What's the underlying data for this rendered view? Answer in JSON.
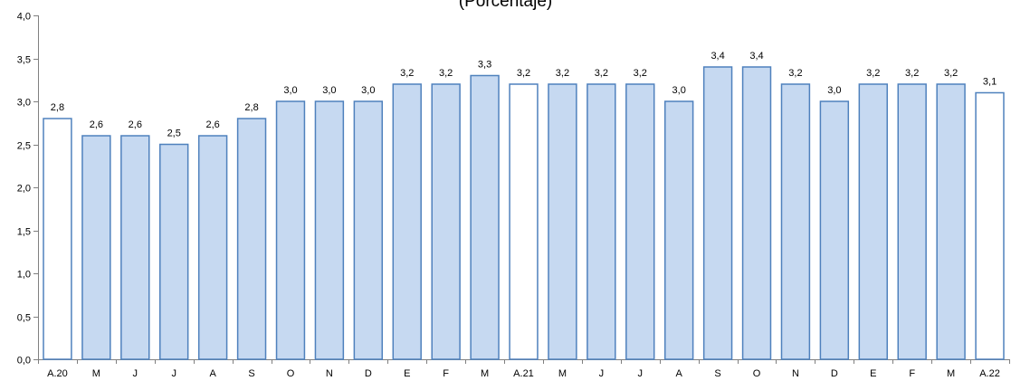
{
  "chart_data": {
    "type": "bar",
    "title": "(Porcentaje)",
    "xlabel": "",
    "ylabel": "",
    "ylim": [
      0,
      4
    ],
    "yticks": [
      "0,0",
      "0,5",
      "1,0",
      "1,5",
      "2,0",
      "2,5",
      "3,0",
      "3,5",
      "4,0"
    ],
    "grid": false,
    "legend": "none",
    "categories": [
      "A.20",
      "M",
      "J",
      "J",
      "A",
      "S",
      "O",
      "N",
      "D",
      "E",
      "F",
      "M",
      "A.21",
      "M",
      "J",
      "J",
      "A",
      "S",
      "O",
      "N",
      "D",
      "E",
      "F",
      "M",
      "A.22"
    ],
    "values": [
      2.8,
      2.6,
      2.6,
      2.5,
      2.6,
      2.8,
      3.0,
      3.0,
      3.0,
      3.2,
      3.2,
      3.3,
      3.2,
      3.2,
      3.2,
      3.2,
      3.0,
      3.4,
      3.4,
      3.2,
      3.0,
      3.2,
      3.2,
      3.2,
      3.1
    ],
    "value_labels": [
      "2,8",
      "2,6",
      "2,6",
      "2,5",
      "2,6",
      "2,8",
      "3,0",
      "3,0",
      "3,0",
      "3,2",
      "3,2",
      "3,3",
      "3,2",
      "3,2",
      "3,2",
      "3,2",
      "3,0",
      "3,4",
      "3,4",
      "3,2",
      "3,0",
      "3,2",
      "3,2",
      "3,2",
      "3,1"
    ],
    "highlighted": [
      true,
      false,
      false,
      false,
      false,
      false,
      false,
      false,
      false,
      false,
      false,
      false,
      true,
      false,
      false,
      false,
      false,
      false,
      false,
      false,
      false,
      false,
      false,
      false,
      true
    ],
    "colors": {
      "bar_fill": "#c6d9f1",
      "bar_fill_highlighted": "#ffffff",
      "bar_stroke": "#4f81bd",
      "axis": "#808080"
    }
  }
}
